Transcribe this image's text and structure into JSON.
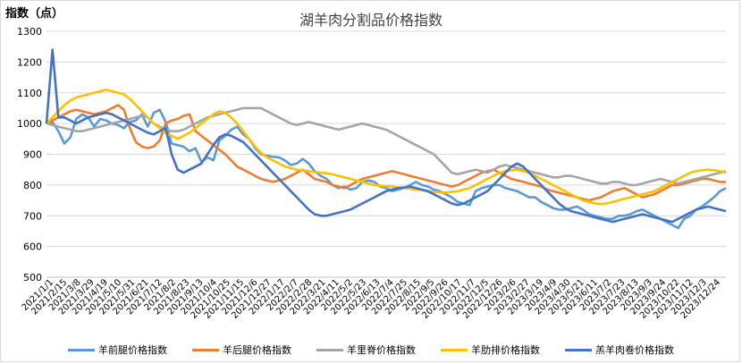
{
  "chart_data": {
    "type": "line",
    "title": "湖羊肉分割品价格指数",
    "ylabel": "指数（点）",
    "xlabel": "",
    "ylim": [
      500,
      1300
    ],
    "yticks": [
      500,
      600,
      700,
      800,
      900,
      1000,
      1100,
      1200,
      1300
    ],
    "grid": true,
    "legend_position": "bottom",
    "x_tick_labels": [
      "2021/1/1",
      "2021/2/15",
      "2021/3/8",
      "2021/3/29",
      "2021/4/19",
      "2021/5/10",
      "2021/5/31",
      "2021/6/21",
      "2021/7/12",
      "2021/8/2",
      "2021/8/23",
      "2021/9/13",
      "2021/10/4",
      "2021/10/25",
      "2021/11/15",
      "2021/12/6",
      "2021/12/27",
      "2022/1/17",
      "2022/2/7",
      "2022/2/28",
      "2022/3/21",
      "2022/4/11",
      "2022/5/2",
      "2022/5/23",
      "2022/6/13",
      "2022/7/4",
      "2022/7/25",
      "2022/8/15",
      "2022/9/5",
      "2022/9/26",
      "2022/10/17",
      "2022/11/7",
      "2022/12/5",
      "2022/12/26",
      "2023/2/6",
      "2023/2/27",
      "2023/3/19",
      "2023/4/9",
      "2023/4/30",
      "2023/5/21",
      "2023/6/11",
      "2023/7/2",
      "2023/7/23",
      "2023/8/13",
      "2023/9/3",
      "2023/9/24",
      "2023/10/22",
      "2023/11/12",
      "2023/12/3",
      "2023/12/24"
    ],
    "series": [
      {
        "name": "羊前腿价格指数",
        "color": "#5b9bd5",
        "values": [
          1000,
          1005,
          975,
          935,
          955,
          1015,
          1030,
          1020,
          990,
          1015,
          1010,
          1000,
          995,
          985,
          1005,
          1010,
          1030,
          990,
          1035,
          1045,
          1005,
          935,
          930,
          925,
          910,
          920,
          875,
          890,
          880,
          945,
          960,
          980,
          990,
          965,
          950,
          920,
          900,
          895,
          892,
          890,
          880,
          865,
          870,
          885,
          870,
          845,
          830,
          820,
          800,
          790,
          795,
          785,
          790,
          810,
          815,
          810,
          795,
          790,
          780,
          785,
          790,
          800,
          810,
          800,
          795,
          785,
          780,
          770,
          760,
          745,
          740,
          735,
          780,
          790,
          795,
          800,
          800,
          790,
          785,
          780,
          770,
          760,
          760,
          745,
          735,
          725,
          720,
          720,
          725,
          730,
          720,
          705,
          700,
          695,
          690,
          690,
          700,
          700,
          705,
          715,
          720,
          710,
          700,
          690,
          680,
          670,
          660,
          690,
          700,
          720,
          730,
          745,
          760,
          780,
          790
        ]
      },
      {
        "name": "羊后腿价格指数",
        "color": "#ed7d31",
        "values": [
          1000,
          1010,
          1020,
          1030,
          1040,
          1045,
          1040,
          1035,
          1030,
          1035,
          1040,
          1050,
          1060,
          1045,
          985,
          940,
          925,
          920,
          925,
          945,
          1000,
          1010,
          1015,
          1025,
          1030,
          975,
          960,
          945,
          930,
          915,
          900,
          880,
          860,
          850,
          840,
          830,
          820,
          815,
          810,
          815,
          820,
          830,
          840,
          850,
          835,
          820,
          815,
          810,
          800,
          795,
          790,
          800,
          810,
          820,
          825,
          830,
          835,
          840,
          845,
          840,
          835,
          830,
          825,
          820,
          815,
          810,
          805,
          800,
          795,
          800,
          810,
          820,
          830,
          840,
          845,
          850,
          840,
          830,
          820,
          815,
          810,
          805,
          800,
          795,
          785,
          780,
          775,
          770,
          765,
          760,
          755,
          750,
          755,
          760,
          770,
          780,
          785,
          790,
          780,
          770,
          760,
          765,
          770,
          780,
          790,
          800,
          800,
          805,
          810,
          815,
          820,
          820,
          815,
          810,
          810
        ]
      },
      {
        "name": "羊里脊价格指数",
        "color": "#a5a5a5",
        "values": [
          1000,
          995,
          990,
          985,
          980,
          975,
          975,
          980,
          985,
          990,
          995,
          1000,
          1005,
          1010,
          1015,
          1020,
          1025,
          1020,
          1000,
          990,
          980,
          975,
          975,
          980,
          990,
          1000,
          1010,
          1020,
          1025,
          1030,
          1035,
          1040,
          1045,
          1050,
          1050,
          1050,
          1050,
          1040,
          1030,
          1020,
          1010,
          1000,
          995,
          1000,
          1005,
          1000,
          995,
          990,
          985,
          980,
          985,
          990,
          995,
          1000,
          995,
          990,
          985,
          980,
          970,
          960,
          950,
          940,
          930,
          920,
          910,
          900,
          880,
          860,
          840,
          835,
          840,
          845,
          850,
          845,
          840,
          850,
          860,
          865,
          860,
          855,
          850,
          845,
          840,
          835,
          830,
          825,
          825,
          830,
          830,
          825,
          820,
          815,
          810,
          805,
          805,
          810,
          810,
          805,
          800,
          800,
          805,
          810,
          815,
          820,
          815,
          810,
          805,
          810,
          815,
          820,
          825,
          830,
          835,
          840,
          845
        ]
      },
      {
        "name": "羊肋排价格指数",
        "color": "#ffc000",
        "values": [
          1000,
          1020,
          1040,
          1060,
          1075,
          1085,
          1090,
          1095,
          1100,
          1105,
          1110,
          1105,
          1100,
          1095,
          1080,
          1060,
          1040,
          1020,
          1000,
          985,
          970,
          960,
          950,
          960,
          970,
          985,
          1000,
          1015,
          1030,
          1040,
          1035,
          1020,
          1000,
          975,
          950,
          925,
          905,
          890,
          880,
          870,
          860,
          855,
          850,
          848,
          845,
          842,
          840,
          838,
          835,
          830,
          825,
          820,
          815,
          810,
          805,
          800,
          798,
          796,
          795,
          792,
          790,
          788,
          785,
          783,
          780,
          778,
          776,
          775,
          778,
          780,
          785,
          790,
          800,
          810,
          820,
          830,
          840,
          845,
          848,
          850,
          845,
          840,
          830,
          820,
          810,
          800,
          790,
          780,
          770,
          760,
          750,
          745,
          740,
          738,
          740,
          745,
          750,
          755,
          760,
          765,
          770,
          775,
          780,
          790,
          800,
          810,
          820,
          830,
          840,
          845,
          848,
          850,
          848,
          845,
          840
        ]
      },
      {
        "name": "羔羊肉卷价格指数",
        "color": "#4472c4",
        "values": [
          1000,
          1240,
          1020,
          1020,
          1010,
          1000,
          1010,
          1020,
          1025,
          1030,
          1035,
          1030,
          1020,
          1010,
          1000,
          990,
          980,
          970,
          965,
          975,
          985,
          900,
          850,
          840,
          850,
          860,
          870,
          900,
          930,
          955,
          965,
          960,
          950,
          940,
          920,
          900,
          880,
          860,
          840,
          820,
          800,
          780,
          760,
          740,
          720,
          705,
          700,
          700,
          705,
          710,
          715,
          720,
          730,
          740,
          750,
          760,
          770,
          780,
          785,
          790,
          792,
          795,
          790,
          785,
          780,
          770,
          760,
          750,
          740,
          735,
          740,
          750,
          760,
          770,
          780,
          800,
          820,
          840,
          860,
          870,
          860,
          840,
          820,
          800,
          780,
          760,
          740,
          725,
          715,
          710,
          705,
          700,
          695,
          690,
          685,
          680,
          685,
          690,
          695,
          700,
          705,
          700,
          695,
          690,
          685,
          680,
          690,
          700,
          710,
          720,
          725,
          730,
          725,
          720,
          715
        ]
      }
    ]
  }
}
